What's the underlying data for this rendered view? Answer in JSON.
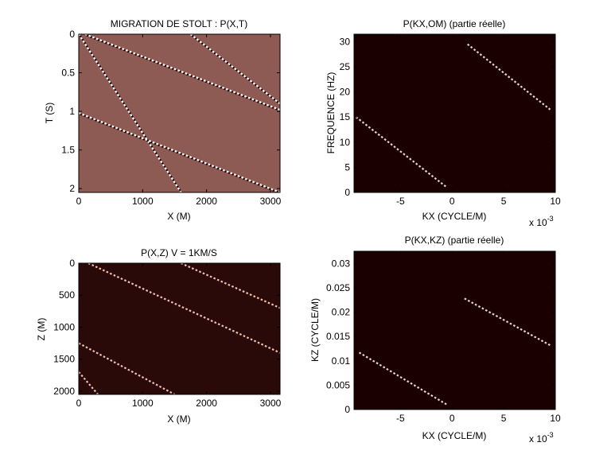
{
  "figure_background": "#ffffff",
  "chart_data": [
    {
      "id": "p_x_t",
      "type": "heatmap",
      "title": "MIGRATION DE STOLT : P(X,T)",
      "xlabel": "X (M)",
      "ylabel": "T (S)",
      "xlim": [
        0,
        3150
      ],
      "ylim": [
        2.05,
        0
      ],
      "xticks": [
        0,
        1000,
        2000,
        3000
      ],
      "xticklabels": [
        "0",
        "1000",
        "2000",
        "3000"
      ],
      "yticks": [
        0,
        0.5,
        1,
        1.5,
        2
      ],
      "yticklabels": [
        "0",
        "0.5",
        "1",
        "1.5",
        "2"
      ],
      "background_color": "#8e5a54",
      "event_color": "#ffffff",
      "event_shadow_color": "#1a0000",
      "events": [
        {
          "x": [
            0,
            1600
          ],
          "y": [
            0.0,
            2.05
          ]
        },
        {
          "x": [
            100,
            3150
          ],
          "y": [
            0.0,
            0.98
          ]
        },
        {
          "x": [
            0,
            3150
          ],
          "y": [
            1.02,
            2.05
          ]
        },
        {
          "x": [
            1750,
            3150
          ],
          "y": [
            0.0,
            0.9
          ]
        }
      ]
    },
    {
      "id": "p_kx_om",
      "type": "heatmap",
      "title": "P(KX,OM) (partie réelle)",
      "xlabel": "KX (CYCLE/M)",
      "ylabel": "FREQUENCE (HZ)",
      "multiplier": "x 10",
      "multiplier_exp": "-3",
      "xlim": [
        -0.0095,
        0.01
      ],
      "ylim": [
        0,
        31.5
      ],
      "xticks": [
        -0.005,
        0,
        0.005,
        0.01
      ],
      "xticklabels": [
        "-5",
        "0",
        "5",
        "10"
      ],
      "yticks": [
        0,
        5,
        10,
        15,
        20,
        25,
        30
      ],
      "yticklabels": [
        "0",
        "5",
        "10",
        "15",
        "20",
        "25",
        "30"
      ],
      "background_color": "#1a0000",
      "event_color": "#f3d2c8",
      "events": [
        {
          "x": [
            -0.0093,
            -0.0005
          ],
          "y": [
            15,
            1
          ]
        },
        {
          "x": [
            0.0015,
            0.0095
          ],
          "y": [
            29.5,
            16.5
          ]
        }
      ]
    },
    {
      "id": "p_x_z",
      "type": "heatmap",
      "title": "P(X,Z)   V = 1KM/S",
      "xlabel": "X (M)",
      "ylabel": "Z (M)",
      "xlim": [
        0,
        3150
      ],
      "ylim": [
        2050,
        0
      ],
      "xticks": [
        0,
        1000,
        2000,
        3000
      ],
      "xticklabels": [
        "0",
        "1000",
        "2000",
        "3000"
      ],
      "yticks": [
        0,
        500,
        1000,
        1500,
        2000
      ],
      "yticklabels": [
        "0",
        "500",
        "1000",
        "1500",
        "2000"
      ],
      "background_color": "#2a0a08",
      "event_color": "#f2c2b4",
      "events": [
        {
          "x": [
            150,
            3150
          ],
          "y": [
            0,
            1400
          ]
        },
        {
          "x": [
            1600,
            3150
          ],
          "y": [
            0,
            700
          ]
        },
        {
          "x": [
            0,
            1500
          ],
          "y": [
            1250,
            2050
          ]
        },
        {
          "x": [
            0,
            300
          ],
          "y": [
            1700,
            2050
          ]
        }
      ]
    },
    {
      "id": "p_kx_kz",
      "type": "heatmap",
      "title": "P(KX,KZ) (partie réelle)",
      "xlabel": "KX (CYCLE/M)",
      "ylabel": "KZ (CYCLE/M)",
      "multiplier": "x 10",
      "multiplier_exp": "-3",
      "xlim": [
        -0.0095,
        0.01
      ],
      "ylim": [
        0,
        0.0325
      ],
      "xticks": [
        -0.005,
        0,
        0.005,
        0.01
      ],
      "xticklabels": [
        "-5",
        "0",
        "5",
        "10"
      ],
      "yticks": [
        0,
        0.005,
        0.01,
        0.015,
        0.02,
        0.025,
        0.03
      ],
      "yticklabels": [
        "0",
        "0.005",
        "0.01",
        "0.015",
        "0.02",
        "0.025",
        "0.03"
      ],
      "background_color": "#1a0000",
      "event_color": "#f3d2c8",
      "events": [
        {
          "x": [
            -0.009,
            -0.0005
          ],
          "y": [
            0.0117,
            0.001
          ]
        },
        {
          "x": [
            0.0012,
            0.0095
          ],
          "y": [
            0.0228,
            0.0132
          ]
        }
      ]
    }
  ]
}
